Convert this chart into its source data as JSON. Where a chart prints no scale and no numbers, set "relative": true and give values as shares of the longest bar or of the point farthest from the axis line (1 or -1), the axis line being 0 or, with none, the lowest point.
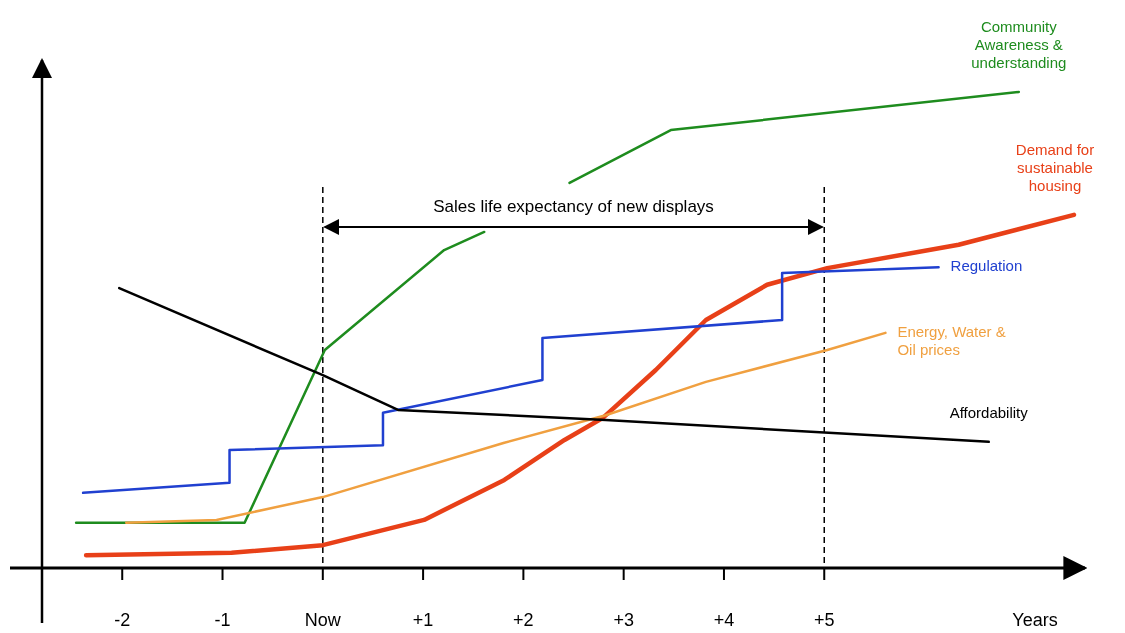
{
  "chart_data": {
    "type": "line",
    "relative": true,
    "xlim": [
      -2.8,
      7.6
    ],
    "xticks": [
      -2,
      -1,
      {
        "value": 0,
        "label": "Now"
      },
      {
        "value": 1,
        "label": "+1"
      },
      {
        "value": 2,
        "label": "+2"
      },
      {
        "value": 3,
        "label": "+3"
      },
      {
        "value": 4,
        "label": "+4"
      },
      {
        "value": 5,
        "label": "+5"
      }
    ],
    "xlabel": "Years",
    "grid": false,
    "marker": "none",
    "tick_labels": "x",
    "ref_lines": [
      {
        "axis": "x",
        "value": 0,
        "line_style": "dashed",
        "color": "#000000"
      },
      {
        "axis": "x",
        "value": 5,
        "line_style": "dashed",
        "color": "#000000"
      }
    ],
    "annotations": [
      "Sales life expectancy of new displays"
    ],
    "series": [
      {
        "name": "Community Awareness & understanding",
        "color": "#1e8c1e",
        "x": [
          -2.46,
          -0.78,
          0.02,
          1.21,
          1.61,
          2.0,
          2.46,
          3.47,
          6.94
        ],
        "values": [
          0.095,
          0.095,
          0.458,
          0.668,
          0.706,
          null,
          0.809,
          0.92,
          1.0
        ]
      },
      {
        "name": "Demand for sustainable housing",
        "color": "#e84018",
        "x": [
          -2.36,
          -0.91,
          0,
          1.01,
          1.81,
          2.41,
          2.79,
          3.32,
          3.82,
          4.43,
          5.03,
          6.34,
          7.49
        ],
        "values": [
          0.027,
          0.032,
          0.048,
          0.101,
          0.185,
          0.269,
          0.315,
          0.416,
          0.521,
          0.595,
          0.63,
          0.679,
          0.742
        ]
      },
      {
        "name": "Regulation",
        "color": "#2040d0",
        "x": [
          -2.39,
          -0.93,
          -0.93,
          0.6,
          0.6,
          2.19,
          2.19,
          4.58,
          4.58,
          6.14
        ],
        "values": [
          0.158,
          0.179,
          0.248,
          0.258,
          0.326,
          0.395,
          0.483,
          0.521,
          0.62,
          0.632
        ]
      },
      {
        "name": "Energy, Water & Oil prices",
        "color": "#f0a040",
        "x": [
          -1.96,
          -1.06,
          0,
          1.81,
          2.82,
          3.82,
          5.03,
          5.61
        ],
        "values": [
          0.095,
          0.101,
          0.149,
          0.263,
          0.321,
          0.391,
          0.458,
          0.494
        ]
      },
      {
        "name": "Affordability",
        "color": "#000000",
        "x": [
          -2.03,
          0,
          0.75,
          2.82,
          6.64
        ],
        "values": [
          0.588,
          0.405,
          0.332,
          0.311,
          0.265
        ]
      }
    ]
  }
}
